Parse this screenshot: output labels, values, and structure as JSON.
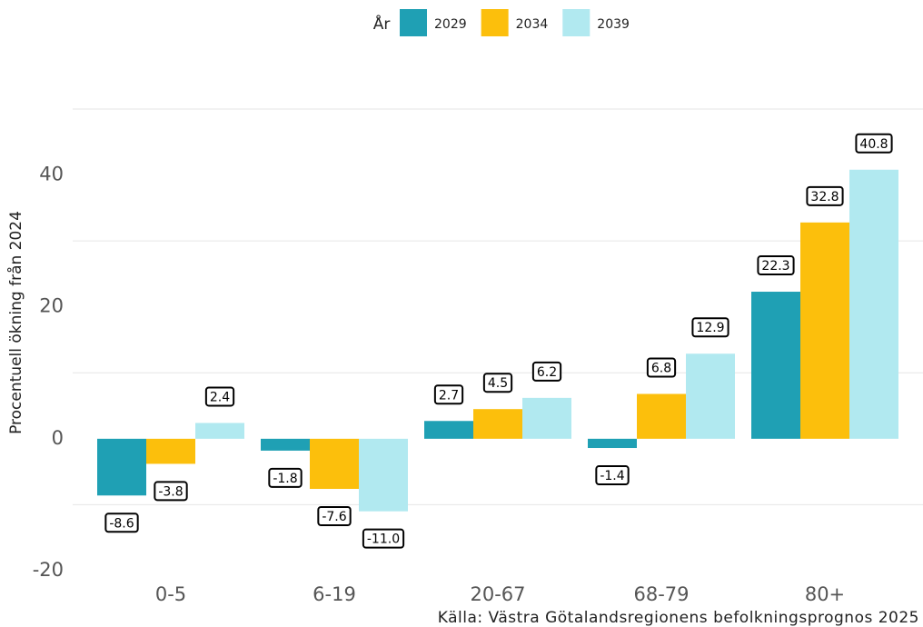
{
  "chart_data": {
    "type": "bar",
    "y_label": "Procentuell ökning från 2024",
    "legend_title": "År",
    "caption": "Källa: Västra Götalandsregionens befolkningsprognos 2025",
    "categories": [
      "0-5",
      "6-19",
      "20-67",
      "68-79",
      "80+"
    ],
    "series": [
      {
        "name": "2029",
        "color": "#1fa0b4",
        "values": [
          -8.6,
          -1.8,
          2.7,
          -1.4,
          22.3
        ],
        "value_labels": [
          "-8.6",
          "-1.8",
          "2.7",
          "-1.4",
          "22.3"
        ]
      },
      {
        "name": "2034",
        "color": "#fcbf0c",
        "values": [
          -3.8,
          -7.6,
          4.5,
          6.8,
          32.8
        ],
        "value_labels": [
          "-3.8",
          "-7.6",
          "4.5",
          "6.8",
          "32.8"
        ]
      },
      {
        "name": "2039",
        "color": "#b1e9f0",
        "values": [
          2.4,
          -11.0,
          6.2,
          12.9,
          40.8
        ],
        "value_labels": [
          "2.4",
          "-11.0",
          "6.2",
          "12.9",
          "40.8"
        ]
      }
    ],
    "ylim": [
      -20,
      50
    ],
    "yticks": [
      -20,
      0,
      20,
      40
    ],
    "minor_yticks": [
      -10,
      10,
      30,
      50
    ],
    "grid": true,
    "legend_position": "top"
  }
}
